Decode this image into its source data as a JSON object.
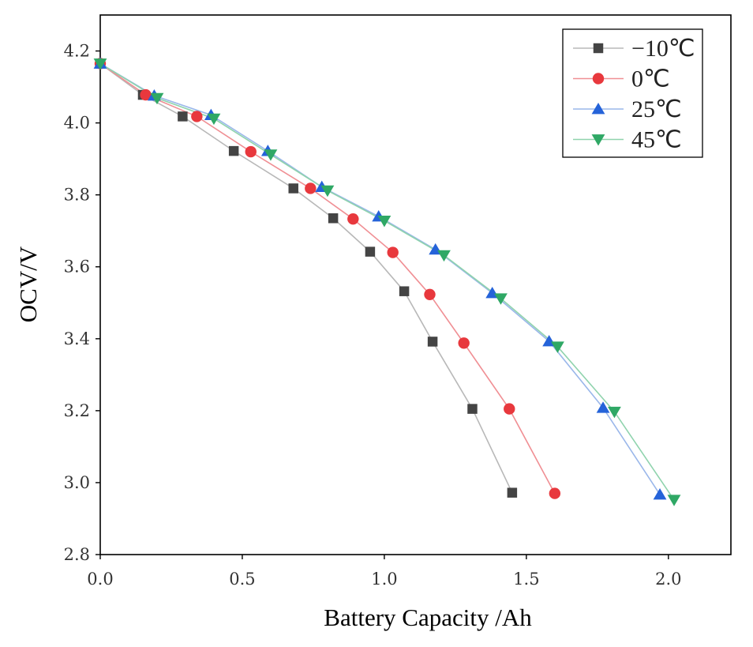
{
  "chart_data": {
    "type": "line",
    "title": "",
    "xlabel": "Battery Capacity /Ah",
    "ylabel": "OCV/V",
    "xlim": [
      0.0,
      2.22
    ],
    "ylim": [
      2.8,
      4.3
    ],
    "xticks": [
      0.0,
      0.5,
      1.0,
      1.5,
      2.0
    ],
    "xtick_labels": [
      "0.0",
      "0.5",
      "1.0",
      "1.5",
      "2.0"
    ],
    "yticks": [
      2.8,
      3.0,
      3.2,
      3.4,
      3.6,
      3.8,
      4.0,
      4.2
    ],
    "ytick_labels": [
      "2.8",
      "3.0",
      "3.2",
      "3.4",
      "3.6",
      "3.8",
      "4.0",
      "4.2"
    ],
    "grid": false,
    "legend_position": "top-right",
    "series": [
      {
        "name": "−10℃",
        "marker": "square",
        "color": "#444444",
        "line_color": "#b8b8b8",
        "x": [
          0.0,
          0.15,
          0.29,
          0.47,
          0.68,
          0.82,
          0.95,
          1.07,
          1.17,
          1.31,
          1.45
        ],
        "y": [
          4.165,
          4.078,
          4.018,
          3.922,
          3.818,
          3.735,
          3.642,
          3.532,
          3.392,
          3.205,
          2.972
        ]
      },
      {
        "name": "0℃",
        "marker": "circle",
        "color": "#e8383d",
        "line_color": "#f08f94",
        "x": [
          0.0,
          0.16,
          0.34,
          0.53,
          0.74,
          0.89,
          1.03,
          1.16,
          1.28,
          1.44,
          1.6
        ],
        "y": [
          4.165,
          4.078,
          4.018,
          3.92,
          3.818,
          3.733,
          3.64,
          3.523,
          3.388,
          3.205,
          2.97
        ]
      },
      {
        "name": "25℃",
        "marker": "triangle-up",
        "color": "#2563d9",
        "line_color": "#9ab7ea",
        "x": [
          0.0,
          0.19,
          0.39,
          0.59,
          0.78,
          0.98,
          1.18,
          1.38,
          1.58,
          1.77,
          1.97
        ],
        "y": [
          4.165,
          4.076,
          4.022,
          3.922,
          3.822,
          3.74,
          3.648,
          3.527,
          3.393,
          3.208,
          2.967
        ]
      },
      {
        "name": "45℃",
        "marker": "triangle-down",
        "color": "#2fa865",
        "line_color": "#8fd3ad",
        "x": [
          0.0,
          0.2,
          0.4,
          0.6,
          0.8,
          1.0,
          1.21,
          1.41,
          1.61,
          1.81,
          2.02
        ],
        "y": [
          4.165,
          4.069,
          4.012,
          3.912,
          3.812,
          3.728,
          3.632,
          3.512,
          3.378,
          3.197,
          2.952
        ]
      }
    ]
  }
}
